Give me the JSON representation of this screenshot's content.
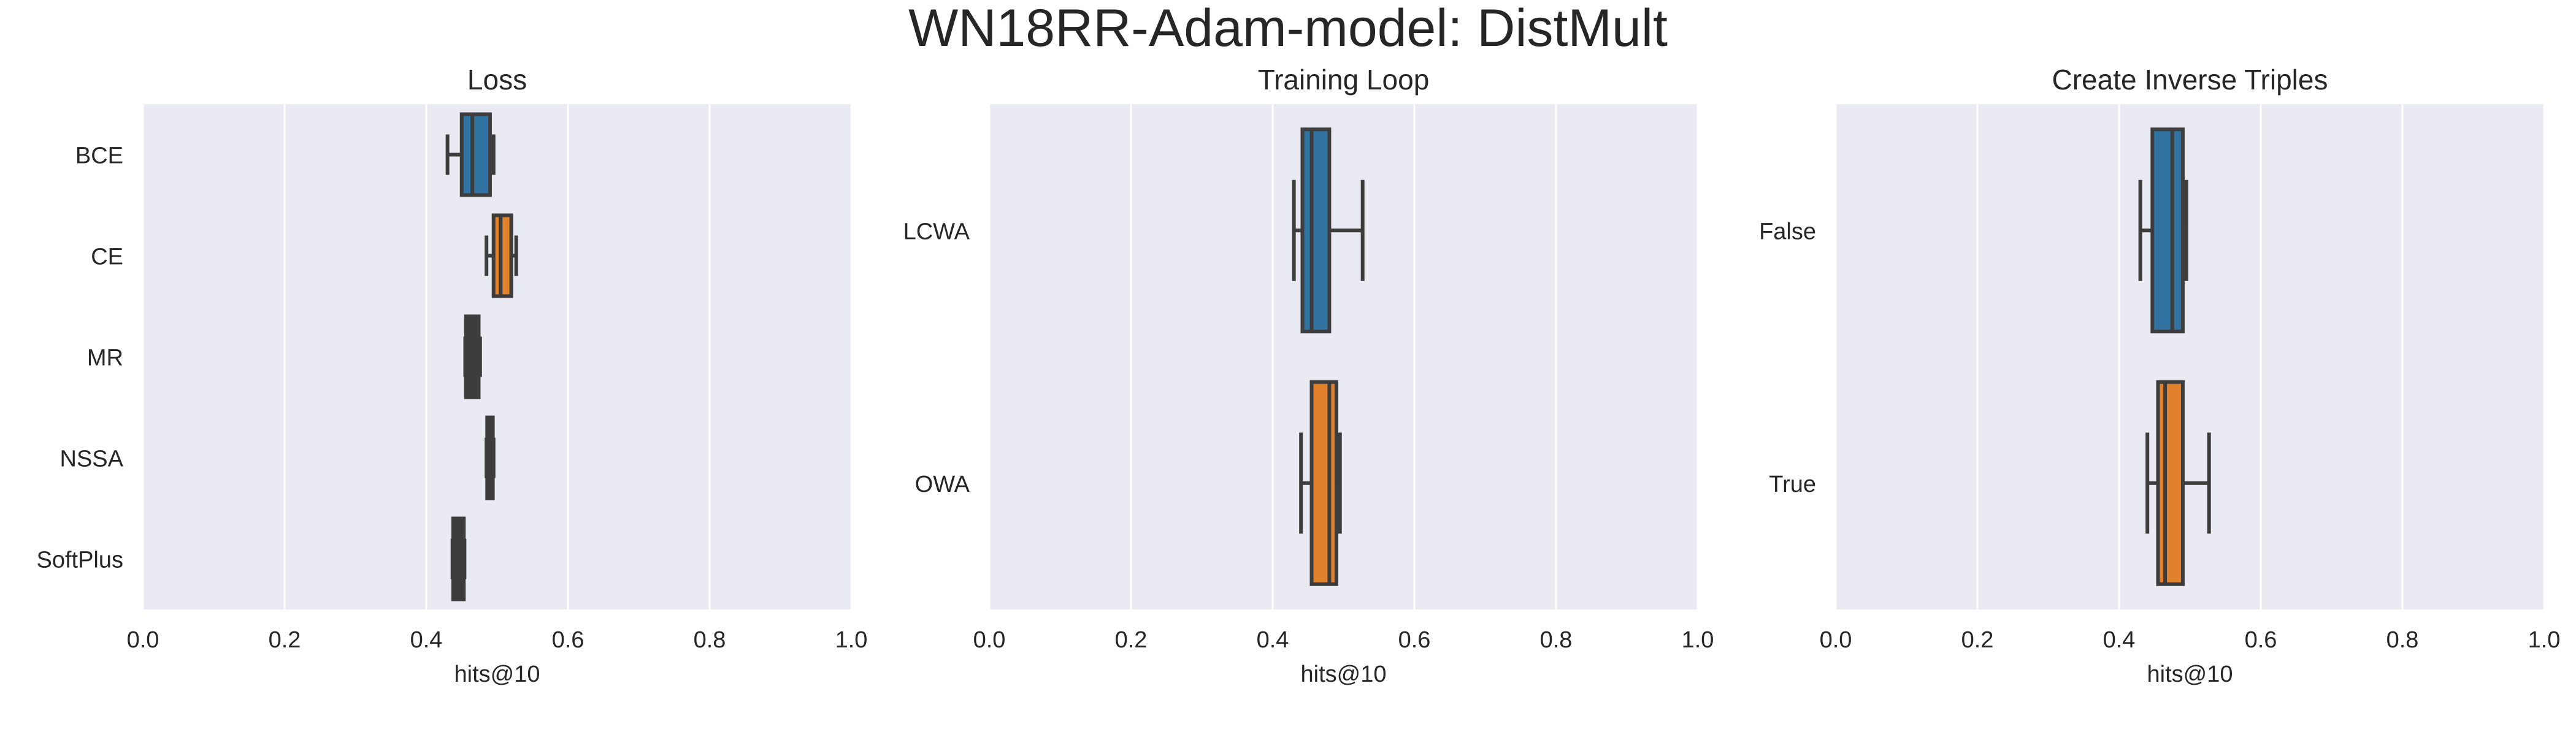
{
  "figure": {
    "title": "WN18RR-Adam-model: DistMult"
  },
  "colors": {
    "plot_bg": "#eaeaf2",
    "grid": "#ffffff",
    "box_edge": "#3d3d3d",
    "text": "#262626",
    "blue": "#3274a1",
    "orange": "#e1812c",
    "gray": "#3d3d3d"
  },
  "chart_data": [
    {
      "type": "box",
      "orientation": "horizontal",
      "title": "Loss",
      "xlabel": "hits@10",
      "ylabel": "",
      "xlim": [
        0.0,
        1.0
      ],
      "xticks": [
        "0.0",
        "0.2",
        "0.4",
        "0.6",
        "0.8",
        "1.0"
      ],
      "grid": true,
      "categories": [
        "BCE",
        "CE",
        "MR",
        "NSSA",
        "SoftPlus"
      ],
      "boxes": [
        {
          "category": "BCE",
          "whislo": 0.43,
          "q1": 0.45,
          "med": 0.465,
          "q3": 0.49,
          "whishi": 0.495,
          "color": "#3274a1"
        },
        {
          "category": "CE",
          "whislo": 0.485,
          "q1": 0.495,
          "med": 0.505,
          "q3": 0.52,
          "whishi": 0.527,
          "color": "#e1812c"
        },
        {
          "category": "MR",
          "whislo": 0.455,
          "q1": 0.456,
          "med": 0.465,
          "q3": 0.474,
          "whishi": 0.476,
          "color": "#3d3d3d"
        },
        {
          "category": "NSSA",
          "whislo": 0.485,
          "q1": 0.486,
          "med": 0.49,
          "q3": 0.494,
          "whishi": 0.495,
          "color": "#3d3d3d"
        },
        {
          "category": "SoftPlus",
          "whislo": 0.437,
          "q1": 0.438,
          "med": 0.445,
          "q3": 0.453,
          "whishi": 0.454,
          "color": "#3d3d3d"
        }
      ]
    },
    {
      "type": "box",
      "orientation": "horizontal",
      "title": "Training Loop",
      "xlabel": "hits@10",
      "ylabel": "",
      "xlim": [
        0.0,
        1.0
      ],
      "xticks": [
        "0.0",
        "0.2",
        "0.4",
        "0.6",
        "0.8",
        "1.0"
      ],
      "grid": true,
      "categories": [
        "LCWA",
        "OWA"
      ],
      "boxes": [
        {
          "category": "LCWA",
          "whislo": 0.43,
          "q1": 0.442,
          "med": 0.455,
          "q3": 0.48,
          "whishi": 0.527,
          "color": "#3274a1"
        },
        {
          "category": "OWA",
          "whislo": 0.44,
          "q1": 0.455,
          "med": 0.48,
          "q3": 0.49,
          "whishi": 0.495,
          "color": "#e1812c"
        }
      ]
    },
    {
      "type": "box",
      "orientation": "horizontal",
      "title": "Create Inverse Triples",
      "xlabel": "hits@10",
      "ylabel": "",
      "xlim": [
        0.0,
        1.0
      ],
      "xticks": [
        "0.0",
        "0.2",
        "0.4",
        "0.6",
        "0.8",
        "1.0"
      ],
      "grid": true,
      "categories": [
        "False",
        "True"
      ],
      "boxes": [
        {
          "category": "False",
          "whislo": 0.43,
          "q1": 0.447,
          "med": 0.475,
          "q3": 0.49,
          "whishi": 0.495,
          "color": "#3274a1"
        },
        {
          "category": "True",
          "whislo": 0.44,
          "q1": 0.455,
          "med": 0.465,
          "q3": 0.49,
          "whishi": 0.527,
          "color": "#e1812c"
        }
      ]
    }
  ]
}
